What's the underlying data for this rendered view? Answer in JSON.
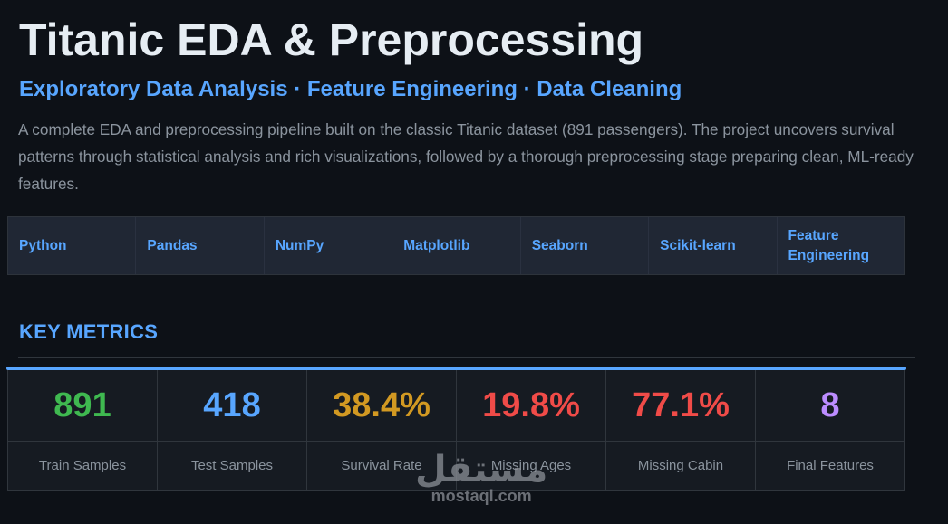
{
  "header": {
    "title": "Titanic EDA & Preprocessing",
    "subtitle": "Exploratory Data Analysis · Feature Engineering · Data Cleaning",
    "description": "A complete EDA and preprocessing pipeline built on the classic Titanic dataset (891 passengers). The project uncovers survival patterns through statistical analysis and rich visualizations, followed by a thorough preprocessing stage preparing clean, ML-ready features."
  },
  "tech_stack": [
    {
      "label": "Python"
    },
    {
      "label": "Pandas"
    },
    {
      "label": "NumPy"
    },
    {
      "label": "Matplotlib"
    },
    {
      "label": "Seaborn"
    },
    {
      "label": "Scikit-learn"
    },
    {
      "label": "Feature Engineering"
    }
  ],
  "key_metrics": {
    "section_title": "KEY METRICS",
    "accent_color": "#58a6ff",
    "items": [
      {
        "value": "891",
        "label": "Train Samples",
        "color": "#3fb950"
      },
      {
        "value": "418",
        "label": "Test Samples",
        "color": "#58a6ff"
      },
      {
        "value": "38.4%",
        "label": "Survival Rate",
        "color": "#d29922"
      },
      {
        "value": "19.8%",
        "label": "Missing Ages",
        "color": "#f04b48"
      },
      {
        "value": "77.1%",
        "label": "Missing Cabin",
        "color": "#f04b48"
      },
      {
        "value": "8",
        "label": "Final Features",
        "color": "#bc8cff"
      }
    ]
  },
  "watermark": {
    "arabic": "مستقل",
    "latin": "mostaql.com"
  }
}
